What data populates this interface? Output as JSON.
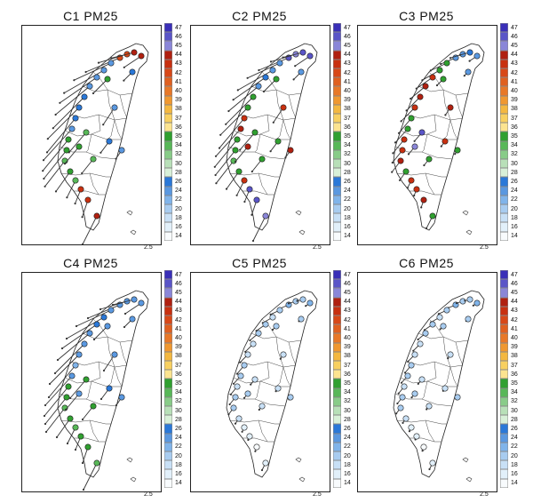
{
  "panels": [
    {
      "title": "C1 PM25",
      "style": "c1"
    },
    {
      "title": "C2 PM25",
      "style": "c2"
    },
    {
      "title": "C3 PM25",
      "style": "c3"
    },
    {
      "title": "C4 PM25",
      "style": "c4"
    },
    {
      "title": "C5 PM25",
      "style": "c5"
    },
    {
      "title": "C6 PM25",
      "style": "c6"
    }
  ],
  "colorbar": {
    "labels": [
      "47",
      "46",
      "45",
      "44",
      "43",
      "42",
      "41",
      "40",
      "39",
      "38",
      "37",
      "36",
      "35",
      "34",
      "32",
      "30",
      "28",
      "26",
      "24",
      "22",
      "20",
      "18",
      "16",
      "14"
    ],
    "colors": [
      "#3a2fb8",
      "#5a55c8",
      "#8a86d8",
      "#b02010",
      "#c83010",
      "#d84818",
      "#e06020",
      "#e87828",
      "#f09830",
      "#f4b840",
      "#f8d060",
      "#fce490",
      "#30a030",
      "#58b858",
      "#88cc88",
      "#b8e0b8",
      "#d8f0d8",
      "#2a78d8",
      "#5a98e0",
      "#80b4ea",
      "#a8ccf0",
      "#c8e0f6",
      "#e2f0fa",
      "#f8fbfd"
    ]
  },
  "scale_label": "2.5"
}
